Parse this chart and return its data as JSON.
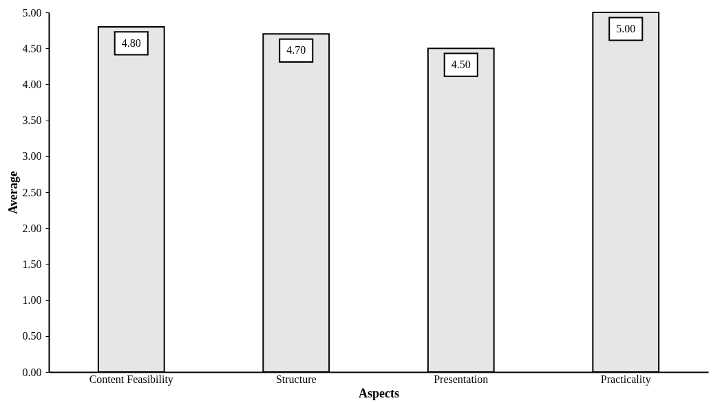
{
  "chart_data": {
    "type": "bar",
    "xlabel": "Aspects",
    "ylabel": "Average",
    "categories": [
      "Content Feasibility",
      "Structure",
      "Presentation",
      "Practicality"
    ],
    "values": [
      4.8,
      4.7,
      4.5,
      5.0
    ],
    "color": "#e6e6e6",
    "value_labels": [
      "4.80",
      "4.70",
      "4.50",
      "5.00"
    ],
    "ylim": [
      0,
      5
    ],
    "yticks": [
      {
        "value": 0,
        "label": "0.00"
      },
      {
        "value": 0.5,
        "label": "0.50"
      },
      {
        "value": 1,
        "label": "1.00"
      },
      {
        "value": 1.5,
        "label": "1.50"
      },
      {
        "value": 2,
        "label": "2.00"
      },
      {
        "value": 2.5,
        "label": "2.50"
      },
      {
        "value": 3,
        "label": "3.00"
      },
      {
        "value": 3.5,
        "label": "3.50"
      },
      {
        "value": 4,
        "label": "4.00"
      },
      {
        "value": 4.5,
        "label": "4.50"
      },
      {
        "value": 5,
        "label": "5.00"
      }
    ],
    "grid": false
  }
}
